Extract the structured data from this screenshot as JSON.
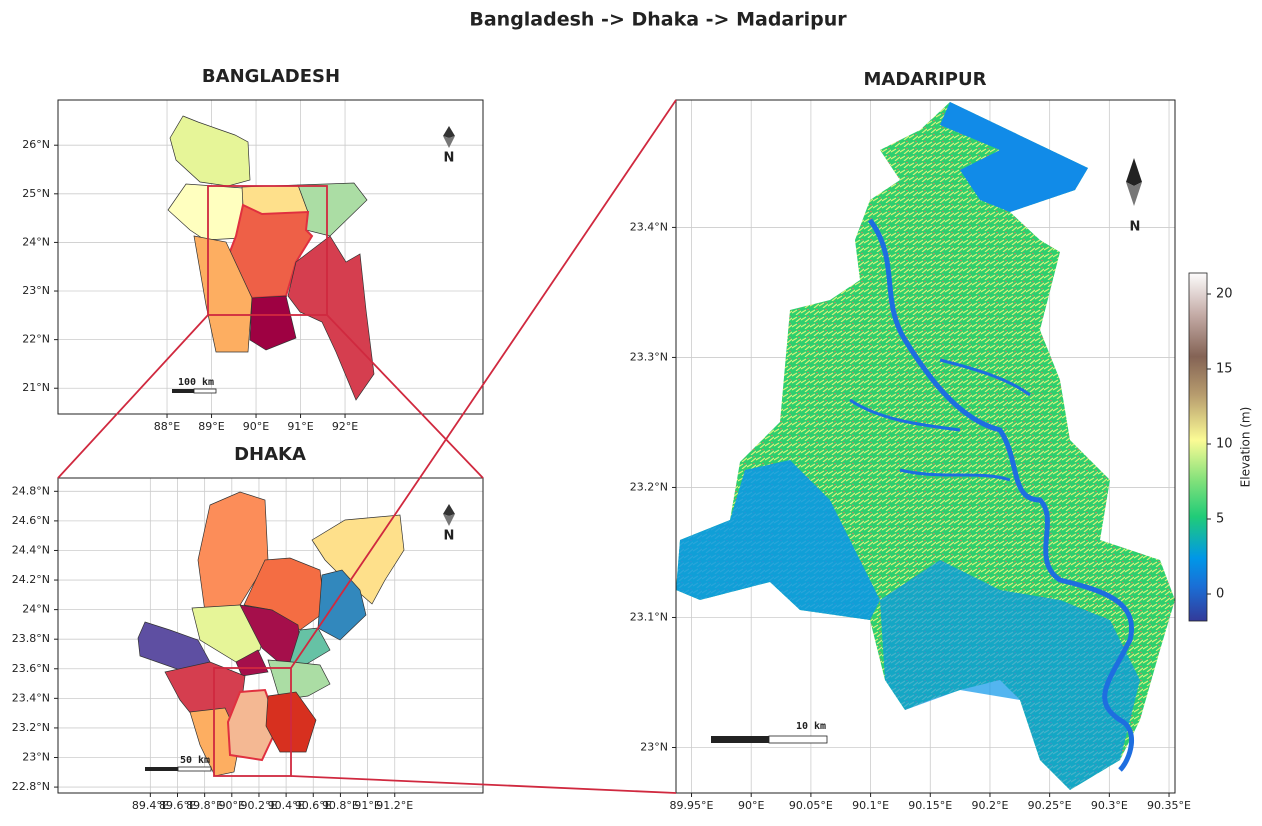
{
  "title": "Bangladesh -> Dhaka -> Madaripur",
  "maps": [
    {
      "title": "BANGLADESH",
      "xlim": [
        85.55,
        95.1
      ],
      "ylim": [
        20.47,
        26.93
      ],
      "xticks": [
        {
          "value": 88,
          "label": "88°E"
        },
        {
          "value": 89,
          "label": "89°E"
        },
        {
          "value": 90,
          "label": "90°E"
        },
        {
          "value": 91,
          "label": "91°E"
        },
        {
          "value": 92,
          "label": "92°E"
        }
      ],
      "yticks": [
        {
          "value": 21,
          "label": "21°N"
        },
        {
          "value": 22,
          "label": "22°N"
        },
        {
          "value": 23,
          "label": "23°N"
        },
        {
          "value": 24,
          "label": "24°N"
        },
        {
          "value": 25,
          "label": "25°N"
        },
        {
          "value": 26,
          "label": "26°N"
        }
      ],
      "scale_bar": "100 km",
      "north": "N"
    },
    {
      "title": "DHAKA",
      "xlim": [
        88.72,
        91.85
      ],
      "ylim": [
        22.76,
        24.89
      ],
      "xticks": [
        {
          "value": 89.4,
          "label": "89.4°E"
        },
        {
          "value": 89.6,
          "label": "89.6°E"
        },
        {
          "value": 89.8,
          "label": "89.8°E"
        },
        {
          "value": 90,
          "label": "90°E"
        },
        {
          "value": 90.2,
          "label": "90.2°E"
        },
        {
          "value": 90.4,
          "label": "90.4°E"
        },
        {
          "value": 90.6,
          "label": "90.6°E"
        },
        {
          "value": 90.8,
          "label": "90.8°E"
        },
        {
          "value": 91,
          "label": "91°E"
        },
        {
          "value": 91.2,
          "label": "91.2°E"
        }
      ],
      "yticks": [
        {
          "value": 22.8,
          "label": "22.8°N"
        },
        {
          "value": 23,
          "label": "23°N"
        },
        {
          "value": 23.2,
          "label": "23.2°N"
        },
        {
          "value": 23.4,
          "label": "23.4°N"
        },
        {
          "value": 23.6,
          "label": "23.6°N"
        },
        {
          "value": 23.8,
          "label": "23.8°N"
        },
        {
          "value": 24,
          "label": "24°N"
        },
        {
          "value": 24.2,
          "label": "24.2°N"
        },
        {
          "value": 24.4,
          "label": "24.4°N"
        },
        {
          "value": 24.6,
          "label": "24.6°N"
        },
        {
          "value": 24.8,
          "label": "24.8°N"
        }
      ],
      "scale_bar": "50 km",
      "north": "N"
    },
    {
      "title": "MADARIPUR",
      "xlim": [
        89.937,
        90.355
      ],
      "ylim": [
        22.965,
        23.498
      ],
      "xticks": [
        {
          "value": 89.95,
          "label": "89.95°E"
        },
        {
          "value": 90,
          "label": "90°E"
        },
        {
          "value": 90.05,
          "label": "90.05°E"
        },
        {
          "value": 90.1,
          "label": "90.1°E"
        },
        {
          "value": 90.15,
          "label": "90.15°E"
        },
        {
          "value": 90.2,
          "label": "90.2°E"
        },
        {
          "value": 90.25,
          "label": "90.25°E"
        },
        {
          "value": 90.3,
          "label": "90.3°E"
        },
        {
          "value": 90.35,
          "label": "90.35°E"
        }
      ],
      "yticks": [
        {
          "value": 23,
          "label": "23°N"
        },
        {
          "value": 23.1,
          "label": "23.1°N"
        },
        {
          "value": 23.2,
          "label": "23.2°N"
        },
        {
          "value": 23.3,
          "label": "23.3°N"
        },
        {
          "value": 23.4,
          "label": "23.4°N"
        }
      ],
      "scale_bar": "10 km",
      "north": "N"
    }
  ],
  "colorbar": {
    "label": "Elevation (m)",
    "lim": [
      -1.8,
      21.4
    ],
    "ticks": [
      0,
      5,
      10,
      15,
      20
    ]
  }
}
